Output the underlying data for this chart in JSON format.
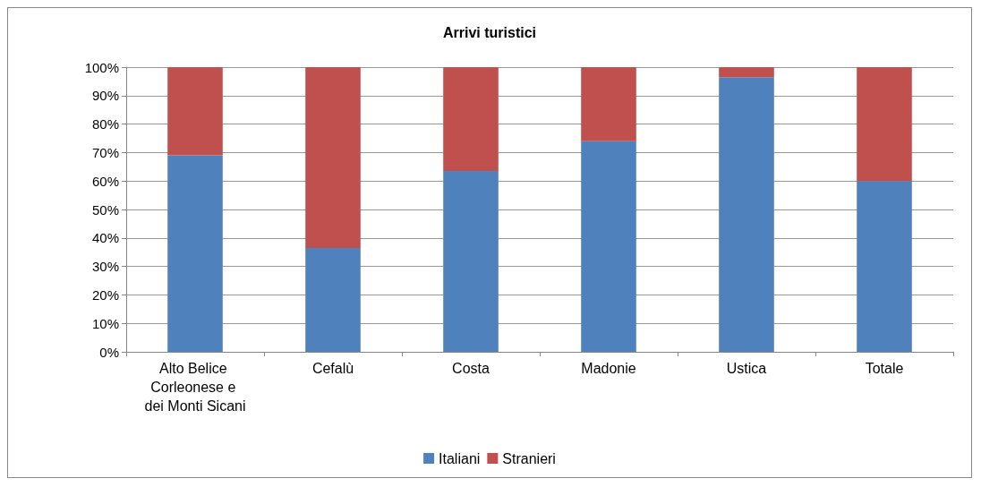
{
  "chart_data": {
    "type": "bar",
    "title": "Arrivi turistici",
    "categories": [
      "Alto Belice Corleonese e dei Monti Sicani",
      "Cefalù",
      "Costa",
      "Madonie",
      "Ustica",
      "Totale"
    ],
    "series": [
      {
        "name": "Italiani",
        "color": "#4f81bd",
        "values": [
          69,
          36.5,
          63.5,
          74,
          96.5,
          60
        ]
      },
      {
        "name": "Stranieri",
        "color": "#c0504d",
        "values": [
          31,
          63.5,
          36.5,
          26,
          3.5,
          40
        ]
      }
    ],
    "stacked": true,
    "ylim": [
      0,
      100
    ],
    "yticks": [
      {
        "value": 0,
        "label": "0%"
      },
      {
        "value": 10,
        "label": "10%"
      },
      {
        "value": 20,
        "label": "20%"
      },
      {
        "value": 30,
        "label": "30%"
      },
      {
        "value": 40,
        "label": "40%"
      },
      {
        "value": 50,
        "label": "50%"
      },
      {
        "value": 60,
        "label": "60%"
      },
      {
        "value": 70,
        "label": "70%"
      },
      {
        "value": 80,
        "label": "80%"
      },
      {
        "value": 90,
        "label": "90%"
      },
      {
        "value": 100,
        "label": "100%"
      }
    ],
    "grid": "y",
    "legend": "bottom"
  }
}
